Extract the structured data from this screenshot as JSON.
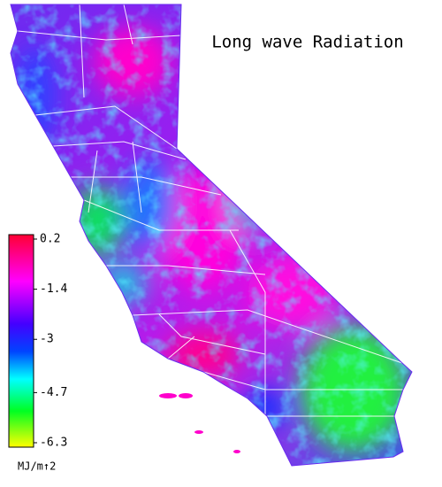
{
  "title": "Long wave Radiation",
  "colorbar": {
    "ticks": [
      0.2,
      -1.4,
      -3.0,
      -4.7,
      -6.3
    ],
    "unit": "MJ/m↑2"
  }
}
